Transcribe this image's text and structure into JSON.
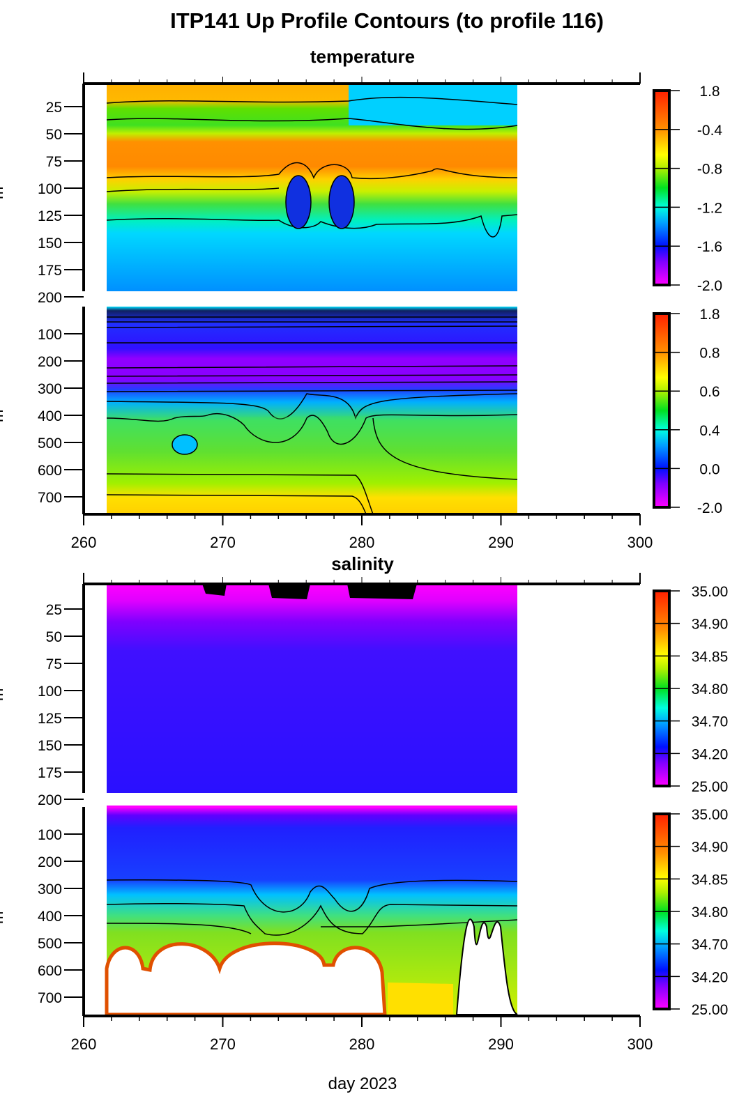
{
  "chart_data": {
    "type": "heatmap",
    "title": "ITP141 Up Profile Contours (to profile 116)",
    "xlabel": "day 2023",
    "xlim": [
      260,
      300
    ],
    "x_ticks": [
      "260",
      "270",
      "280",
      "290",
      "300"
    ],
    "data_x_range": [
      261.6,
      291.1
    ],
    "ylabel": "m",
    "sections": [
      {
        "name": "temperature",
        "panels": [
          {
            "ylim": [
              0,
              200
            ],
            "y_ticks": [
              "25",
              "50",
              "75",
              "100",
              "125",
              "150",
              "175",
              "200"
            ],
            "colorbar_ticks": [
              "1.8",
              "-0.4",
              "-0.8",
              "-1.2",
              "-1.6",
              "-2.0"
            ]
          },
          {
            "ylim": [
              0,
              760
            ],
            "y_ticks": [
              "100",
              "200",
              "300",
              "400",
              "500",
              "600",
              "700"
            ],
            "colorbar_ticks": [
              "1.8",
              "0.8",
              "0.6",
              "0.4",
              "0.0",
              "-2.0"
            ]
          }
        ]
      },
      {
        "name": "salinity",
        "panels": [
          {
            "ylim": [
              0,
              200
            ],
            "y_ticks": [
              "25",
              "50",
              "75",
              "100",
              "125",
              "150",
              "175",
              "200"
            ],
            "colorbar_ticks": [
              "35.00",
              "34.90",
              "34.85",
              "34.80",
              "34.70",
              "34.20",
              "25.00"
            ]
          },
          {
            "ylim": [
              0,
              760
            ],
            "y_ticks": [
              "100",
              "200",
              "300",
              "400",
              "500",
              "600",
              "700"
            ],
            "colorbar_ticks": [
              "35.00",
              "34.90",
              "34.85",
              "34.80",
              "34.70",
              "34.20",
              "25.00"
            ]
          }
        ]
      }
    ],
    "colormap": [
      "#ff00ff",
      "#8000ff",
      "#0010ff",
      "#00c0ff",
      "#00ffd0",
      "#00e020",
      "#a0f000",
      "#ffff00",
      "#ffa000",
      "#ff2000"
    ]
  }
}
